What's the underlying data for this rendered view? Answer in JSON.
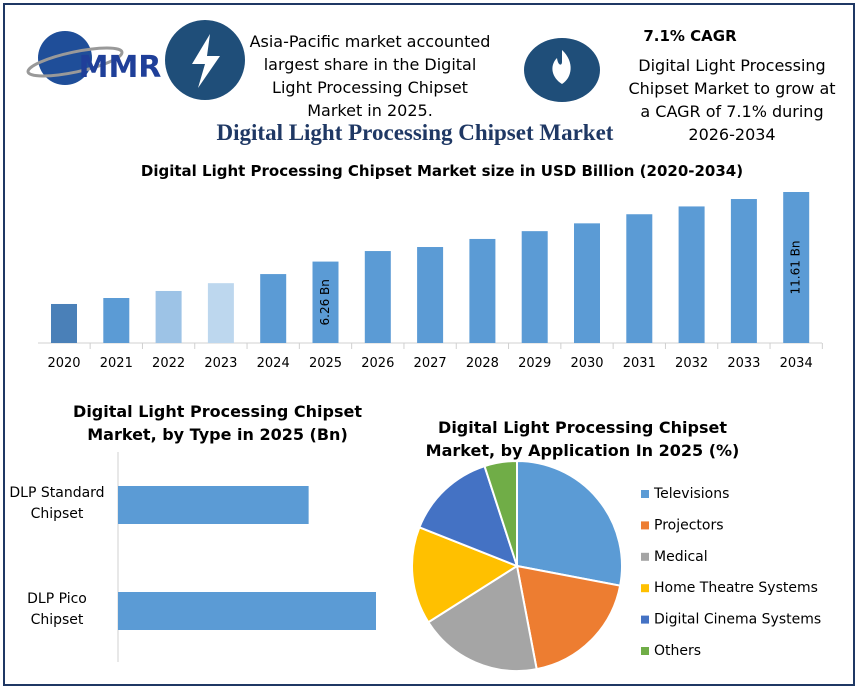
{
  "header": {
    "logo": "MMR",
    "info": "Asia-Pacific market accounted largest share in the Digital Light Processing Chipset Market in 2025.",
    "cagr_title": "7.1% CAGR",
    "cagr_text": "Digital Light Processing Chipset Market to grow at a CAGR of 7.1% during 2026-2034",
    "title": "Digital Light Processing Chipset Market"
  },
  "chart_data": [
    {
      "type": "bar",
      "title": "Digital Light Processing Chipset Market size in USD Billion (2020-2034)",
      "categories": [
        "2020",
        "2021",
        "2022",
        "2023",
        "2024",
        "2025",
        "2026",
        "2027",
        "2028",
        "2029",
        "2030",
        "2031",
        "2032",
        "2033",
        "2034"
      ],
      "values": [
        3.0,
        3.46,
        4.0,
        4.6,
        5.3,
        6.26,
        7.07,
        7.38,
        8.0,
        8.6,
        9.2,
        9.9,
        10.5,
        11.07,
        11.61
      ],
      "value_labels": [
        null,
        null,
        null,
        null,
        null,
        "6.26 Bn",
        null,
        null,
        null,
        null,
        null,
        null,
        null,
        null,
        "11.61 Bn"
      ],
      "colors": [
        "#4a80b8",
        "#5b9bd5",
        "#9dc3e6",
        "#bdd7ee",
        "#5b9bd5",
        "#5b9bd5",
        "#5b9bd5",
        "#5b9bd5",
        "#5b9bd5",
        "#5b9bd5",
        "#5b9bd5",
        "#5b9bd5",
        "#5b9bd5",
        "#5b9bd5",
        "#5b9bd5"
      ]
    },
    {
      "type": "hbar",
      "title": "Digital Light Processing Chipset Market, by Type in 2025 (Bn)",
      "categories": [
        "DLP Standard Chipset",
        "DLP Pico Chipset"
      ],
      "values": [
        2.66,
        3.6
      ],
      "color": "#5b9bd5"
    },
    {
      "type": "pie",
      "title": "Digital Light Processing Chipset Market, by Application In 2025 (%)",
      "categories": [
        "Televisions",
        "Projectors",
        "Medical",
        "Home Theatre Systems",
        "Digital Cinema Systems",
        "Others"
      ],
      "values": [
        28,
        19,
        19,
        15,
        14,
        5
      ],
      "colors": [
        "#5b9bd5",
        "#ed7d31",
        "#a5a5a5",
        "#ffc000",
        "#4472c4",
        "#70ad47"
      ],
      "legend": "right"
    }
  ]
}
